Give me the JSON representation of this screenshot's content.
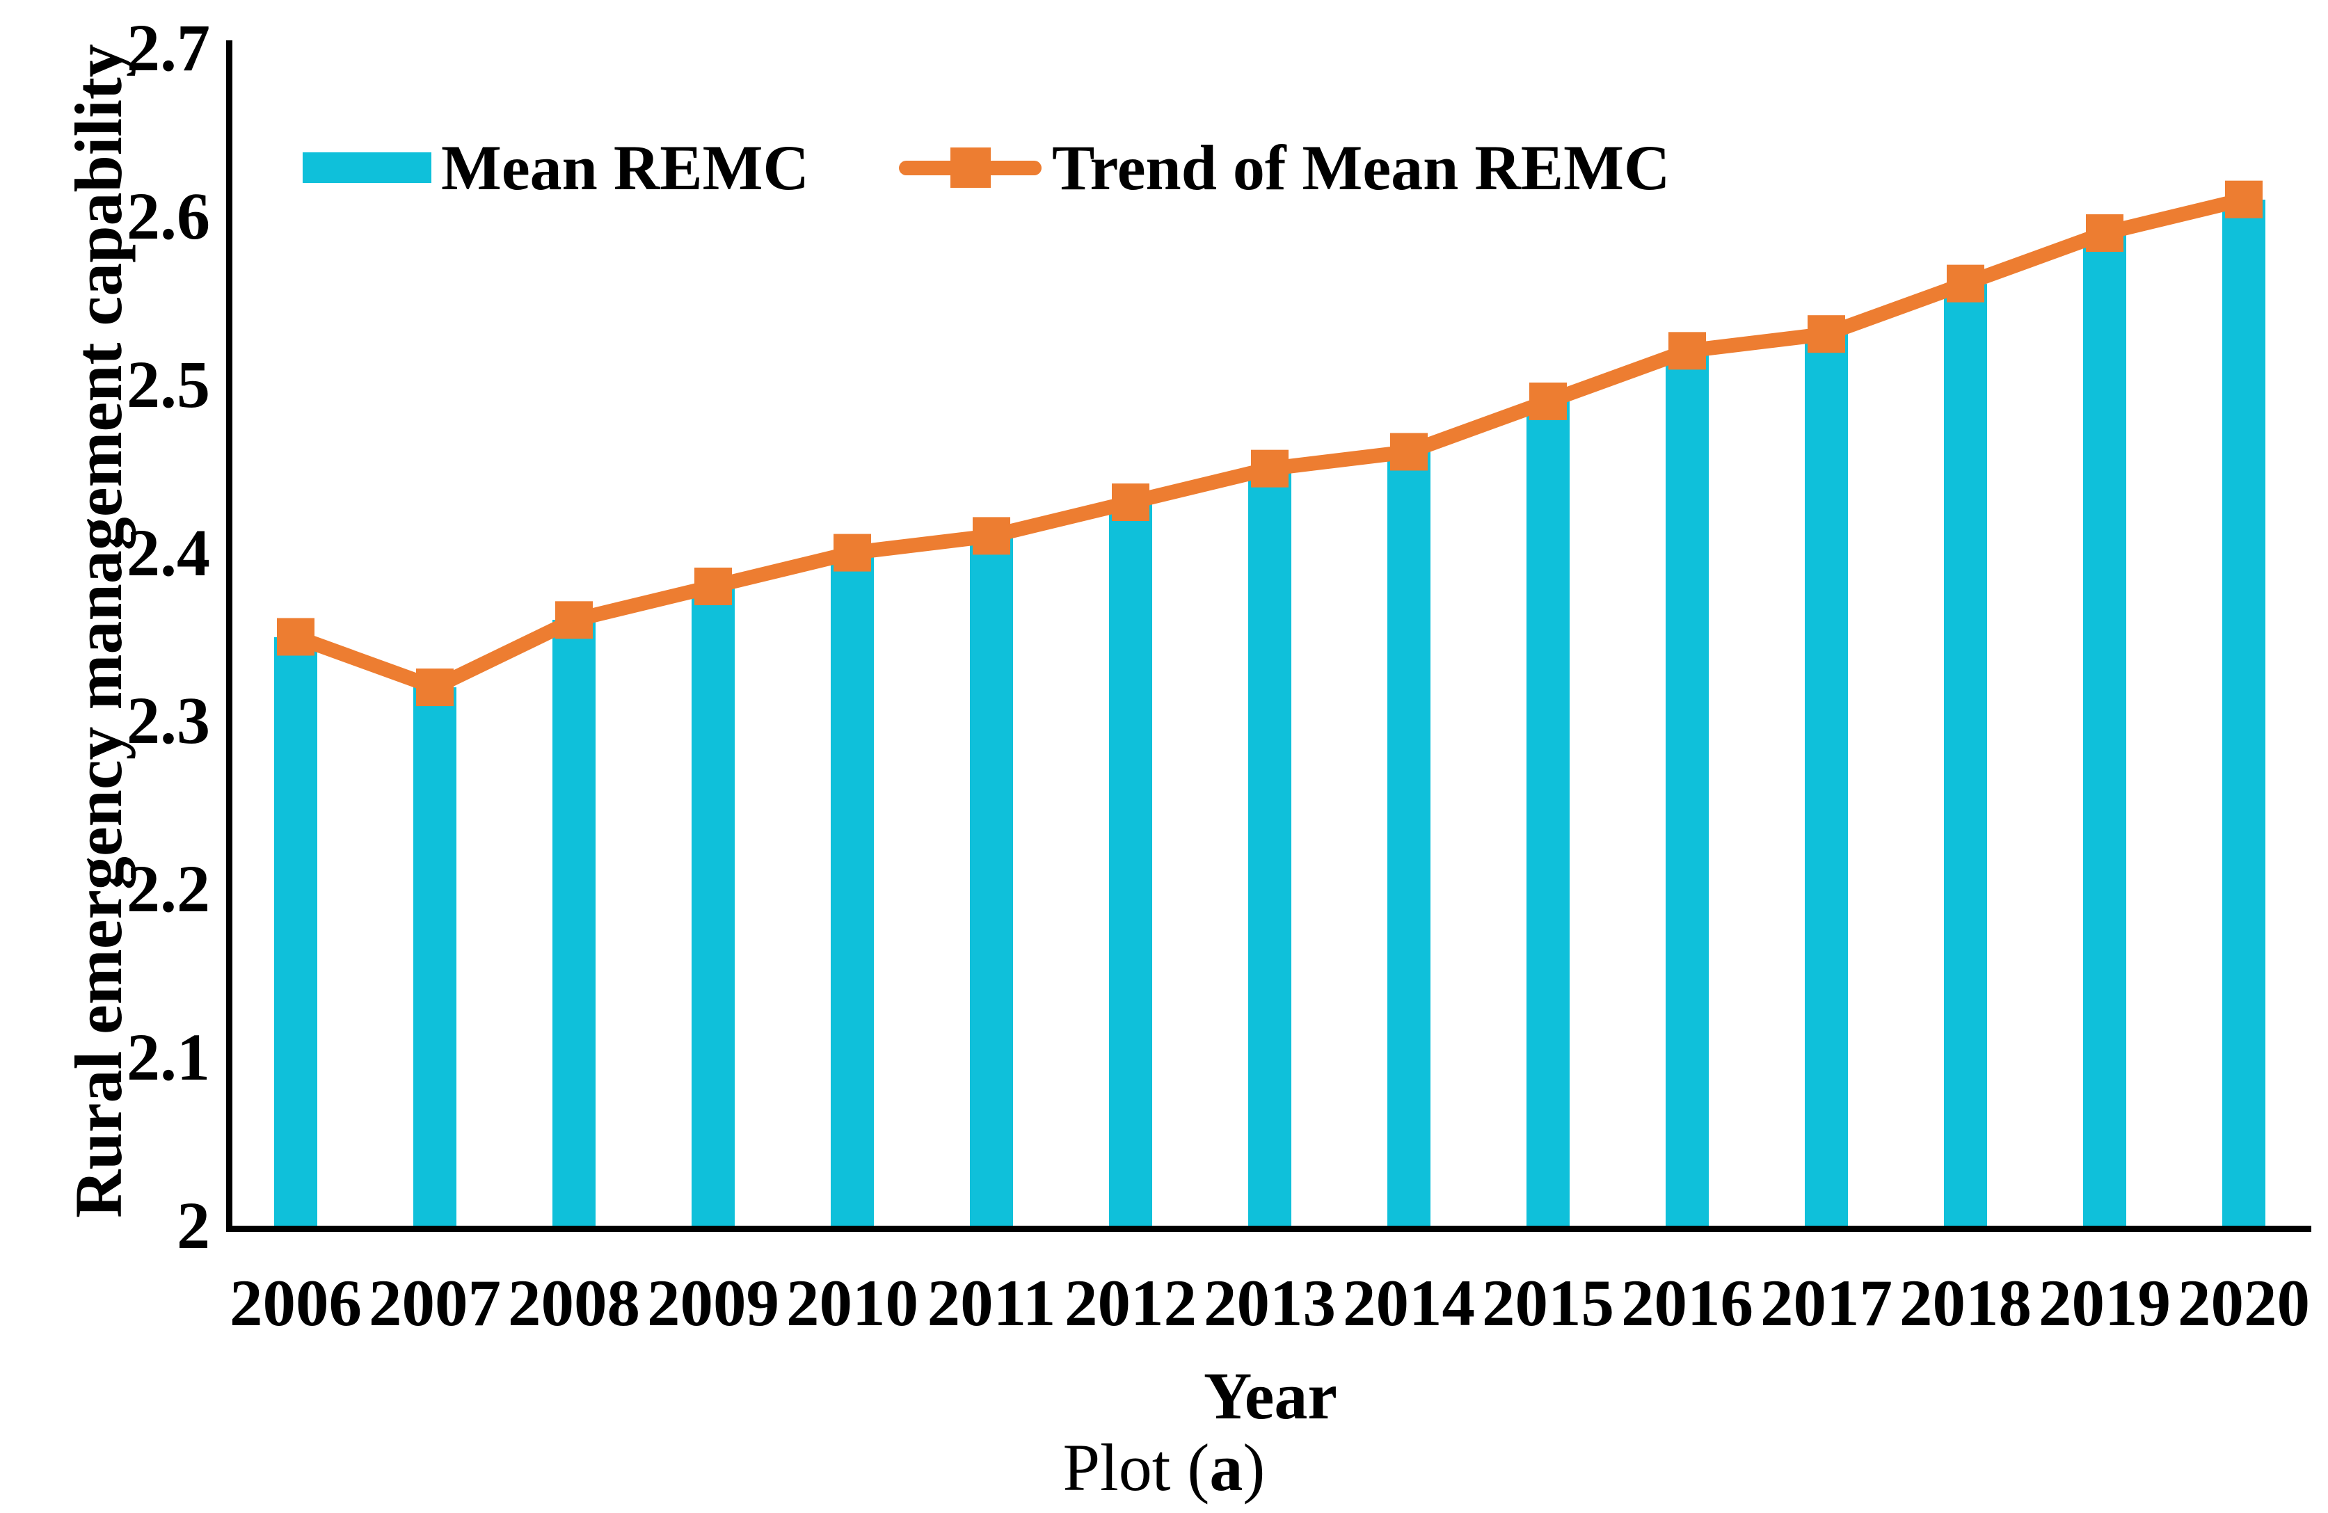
{
  "figure": {
    "caption": {
      "prefix": "Plot (",
      "emph": "a",
      "suffix": ")"
    }
  },
  "legend": {
    "items": [
      {
        "label": "Mean REMC",
        "swatch": "bar-swatch"
      },
      {
        "label": "Trend of Mean REMC",
        "swatch": "line-with-square-marker"
      }
    ]
  },
  "chart_data": {
    "type": "bar",
    "subtype": "bar-with-trend-line",
    "title": "",
    "xlabel": "Year",
    "ylabel": "Rural emergency management capability",
    "categories": [
      "2006",
      "2007",
      "2008",
      "2009",
      "2010",
      "2011",
      "2012",
      "2013",
      "2014",
      "2015",
      "2016",
      "2017",
      "2018",
      "2019",
      "2020"
    ],
    "series": [
      {
        "name": "Mean REMC",
        "type": "bar",
        "color": "#0fc0da",
        "values": [
          2.35,
          2.32,
          2.36,
          2.38,
          2.4,
          2.41,
          2.43,
          2.45,
          2.46,
          2.49,
          2.52,
          2.53,
          2.56,
          2.59,
          2.61
        ]
      },
      {
        "name": "Trend of Mean REMC",
        "type": "line",
        "color": "#ed7d31",
        "marker": "square",
        "values": [
          2.35,
          2.32,
          2.36,
          2.38,
          2.4,
          2.41,
          2.43,
          2.45,
          2.46,
          2.49,
          2.52,
          2.53,
          2.56,
          2.59,
          2.61
        ]
      }
    ],
    "ylim": [
      2,
      2.7
    ],
    "yticks": [
      2.7,
      2.6,
      2.5,
      2.4,
      2.3,
      2.2,
      2.1,
      2
    ],
    "ytick_labels": [
      "2.7",
      "2.6",
      "2.5",
      "2.4",
      "2.3",
      "2.2",
      "2.1",
      "2"
    ],
    "grid": false,
    "legend_position": "top-left-inside"
  },
  "colors": {
    "bar": "#0fc0da",
    "line": "#ed7d31",
    "axis": "#000000",
    "text": "#000000",
    "background": "#ffffff"
  }
}
